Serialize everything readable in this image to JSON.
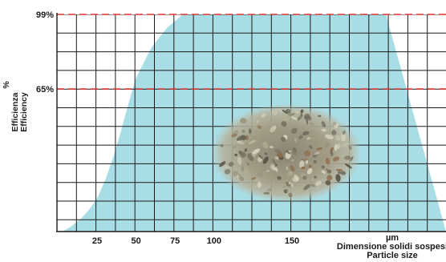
{
  "chart_data": {
    "type": "area",
    "ylabel_it": "Efficienza",
    "ylabel_pct": "%",
    "ylabel_en": "Efficiency",
    "xlabel_unit": "µm",
    "xlabel_it": "Dimensione solidi sospesi",
    "xlabel_en": "Particle size",
    "x_ticks": [
      25,
      50,
      75,
      100,
      150
    ],
    "x_tick_labels": [
      "25",
      "50",
      "75",
      "100",
      "150"
    ],
    "reference_lines": [
      {
        "label": "99%",
        "value": 99,
        "color": "#e0322d",
        "style": "dashed"
      },
      {
        "label": "65%",
        "value": 65,
        "color": "#e0322d",
        "style": "dashed"
      }
    ],
    "fill_color": "#a9dde6",
    "grid": true,
    "series": [
      {
        "x": [
          0,
          3,
          8,
          15,
          20,
          25,
          30,
          35,
          40,
          45,
          50,
          60,
          70,
          80,
          100,
          150,
          210
        ],
        "y": [
          0,
          0,
          2,
          6,
          10,
          15,
          23,
          33,
          45,
          58,
          70,
          84,
          93,
          99,
          100,
          100,
          100
        ]
      }
    ]
  },
  "image": {
    "description_name": "suspended-solids-photo"
  }
}
